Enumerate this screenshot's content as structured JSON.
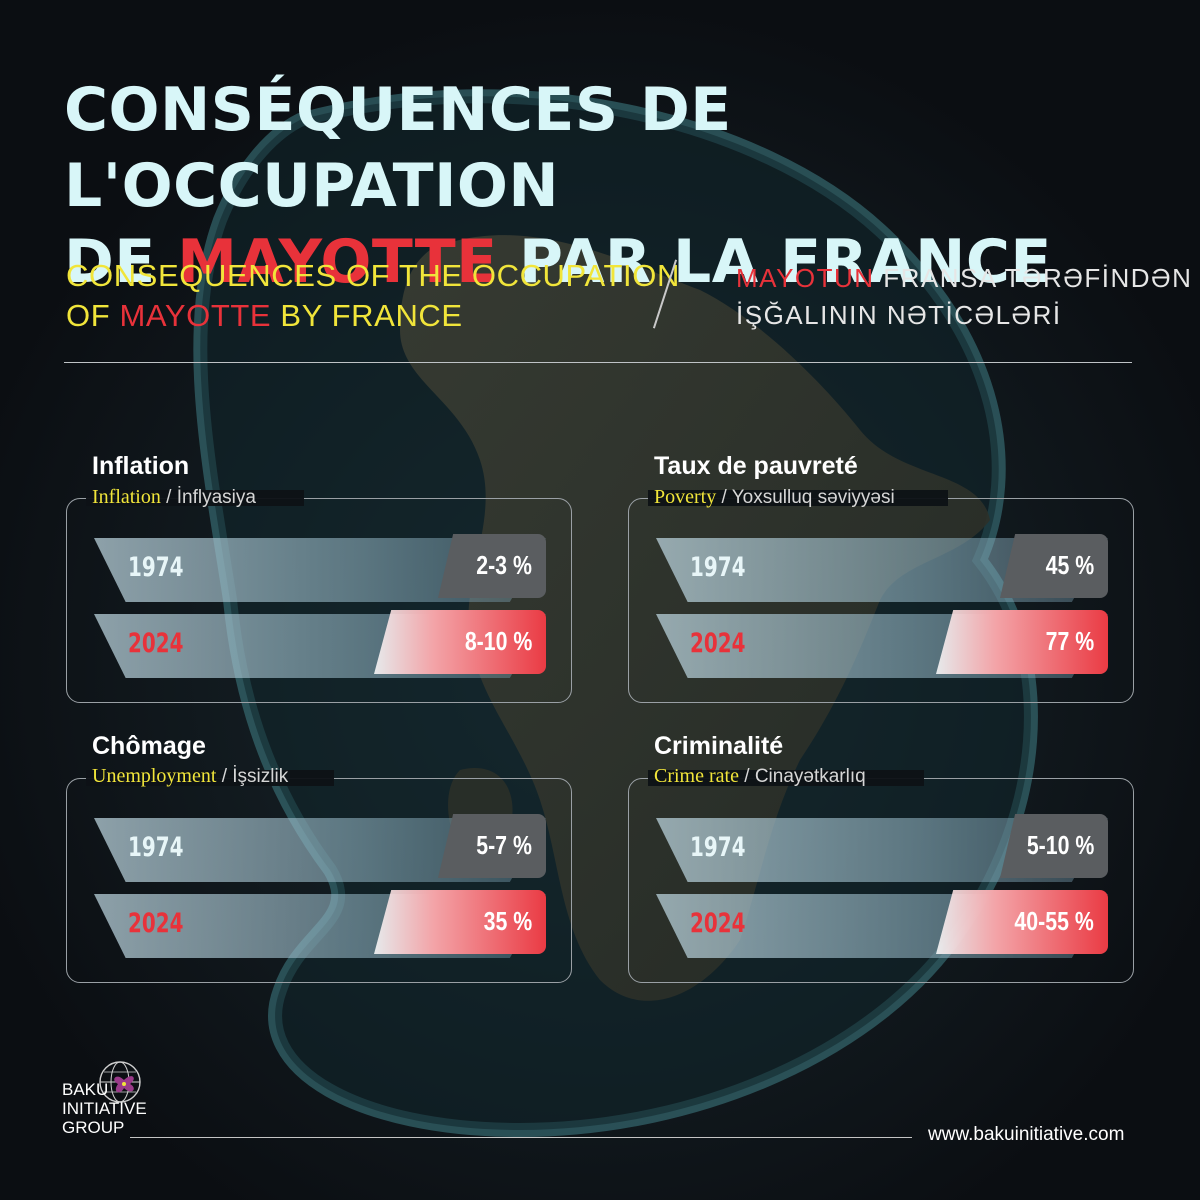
{
  "header": {
    "title_line1": "CONSÉQUENCES DE L'OCCUPATION",
    "title_line2_prefix": "DE ",
    "title_line2_red": "MAYOTTE",
    "title_line2_suffix": " PAR LA FRANCE",
    "en_line1": "CONSEQUENCES OF THE OCCUPATION",
    "en_line2_prefix": "OF ",
    "en_line2_red": "MAYOTTE",
    "en_line2_suffix": " BY FRANCE",
    "az_line1_red": "MAYOTUN",
    "az_line1_rest": " FRANSA TƏRƏFİNDƏN",
    "az_line2": "İŞĞALININ NƏTİCƏLƏRİ"
  },
  "cards": {
    "inflation": {
      "title": "Inflation",
      "sub_en": "Inflation",
      "sub_sep": " / ",
      "sub_az": "İnflyasiya",
      "rows": [
        {
          "year": "1974",
          "value": "2-3 %"
        },
        {
          "year": "2024",
          "value": "8-10 %"
        }
      ]
    },
    "poverty": {
      "title": "Taux de pauvreté",
      "sub_en": "Poverty",
      "sub_sep": " / ",
      "sub_az": "Yoxsulluq səviyyəsi",
      "rows": [
        {
          "year": "1974",
          "value": "45 %"
        },
        {
          "year": "2024",
          "value": "77 %"
        }
      ]
    },
    "unemployment": {
      "title": "Chômage",
      "sub_en": "Unemployment",
      "sub_sep": " / ",
      "sub_az": "İşsizlik",
      "rows": [
        {
          "year": "1974",
          "value": "5-7 %"
        },
        {
          "year": "2024",
          "value": "35 %"
        }
      ]
    },
    "crime": {
      "title": "Criminalité",
      "sub_en": "Crime rate",
      "sub_sep": " / ",
      "sub_az": "Cinayətkarlıq",
      "rows": [
        {
          "year": "1974",
          "value": "5-10 %"
        },
        {
          "year": "2024",
          "value": "40-55 %"
        }
      ]
    }
  },
  "footer": {
    "logo_line1": "BAKU",
    "logo_line2": "INITIATIVE",
    "logo_line3": "GROUP",
    "url": "www.bakuinitiative.com"
  },
  "colors": {
    "accent_red": "#e8323a",
    "accent_yellow": "#f1e53a",
    "title_cyan": "#d8f6f8",
    "background": "#0d1014"
  },
  "icons": {
    "logo": "globe-flower-icon"
  }
}
